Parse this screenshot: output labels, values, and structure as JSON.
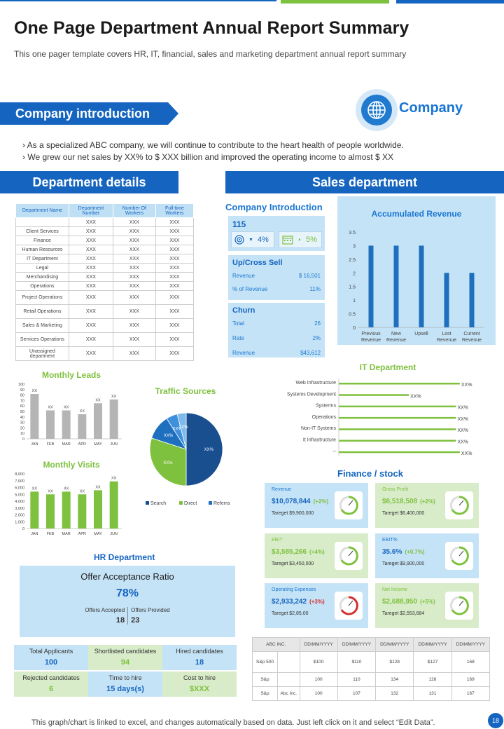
{
  "header": {
    "title": "One Page Department Annual Report Summary",
    "subtitle": "This one pager template covers HR, IT, financial, sales and marketing department annual report summary"
  },
  "company_intro": {
    "heading": "Company introduction",
    "logo_text": "Company",
    "bullets": [
      "As a specialized ABC company, we will continue to contribute to the heart health of people worldwide.",
      "We grew our net sales by XX%  to $ XXX  billion and improved  the operating income to almost $ XX"
    ]
  },
  "department_details": {
    "heading": "Department details",
    "columns": [
      "Department Name",
      "Department Number",
      "Number Of Workers",
      "Full-time Workers"
    ],
    "rows": [
      [
        "",
        "XXX",
        "XXX",
        "XXX"
      ],
      [
        "Client Services",
        "XXX",
        "XXX",
        "XXX"
      ],
      [
        "Finance",
        "XXX",
        "XXX",
        "XXX"
      ],
      [
        "Human Resources",
        "XXX",
        "XXX",
        "XXX"
      ],
      [
        "IT Department",
        "XXX",
        "XXX",
        "XXX"
      ],
      [
        "Legal",
        "XXX",
        "XXX",
        "XXX"
      ],
      [
        "Merchandising",
        "XXX",
        "XXX",
        "XXX"
      ],
      [
        "Operations",
        "XXX",
        "XXX",
        "XXX"
      ],
      [
        "Project Operations",
        "XXX",
        "XXX",
        "XXX"
      ],
      [
        "Retail Operations",
        "XXX",
        "XXX",
        "XXX"
      ],
      [
        "Sales & Marketing",
        "XXX",
        "XXX",
        "XXX"
      ],
      [
        "Services Operations",
        "XXX",
        "XXX",
        "XXX"
      ],
      [
        "Unassigned department",
        "XXX",
        "XXX",
        "XXX"
      ]
    ]
  },
  "sales_department": {
    "heading": "Sales department",
    "intro_title": "Company Introduction",
    "intro_number": "115",
    "chip1": "4%",
    "chip2": "5%",
    "upcross": {
      "title": "Up/Cross Sell",
      "revenue_label": "Revenue",
      "revenue_value": "$ 16,501",
      "pct_label": "% of Revenue",
      "pct_value": "11%"
    },
    "churn": {
      "title": "Churn",
      "total_label": "Total",
      "total_value": "26",
      "rate_label": "Rate",
      "rate_value": "2%",
      "revenue_label": "Revenue",
      "revenue_value": "$43,612"
    }
  },
  "colors": {
    "blue": "#1565c0",
    "green": "#7ec13e",
    "light_blue": "#c5e3f6",
    "light_green": "#d8ecc9",
    "red": "#d32f2f"
  },
  "chart_data": [
    {
      "type": "bar",
      "title": "Accumulated Revenue",
      "categories": [
        "Previous Revenue",
        "New Revenue",
        "Upsell",
        "Lost Revenue",
        "Current Revenue"
      ],
      "values": [
        3,
        3,
        3,
        2,
        2
      ],
      "ylim": [
        0,
        3.5
      ],
      "yticks": [
        "0",
        "0.5",
        "1",
        "1.5",
        "2",
        "2.5",
        "3",
        "3.5"
      ]
    },
    {
      "type": "bar",
      "title": "Monthly Leads",
      "categories": [
        "JAN",
        "FEB",
        "MAR",
        "APR",
        "MAY",
        "JUN"
      ],
      "values": [
        82,
        52,
        52,
        45,
        65,
        72
      ],
      "labels": [
        "XX",
        "XX",
        "XX",
        "XX",
        "XX",
        "XX"
      ],
      "ylim": [
        0,
        100
      ],
      "yticks": [
        "0",
        "10",
        "20",
        "30",
        "40",
        "50",
        "60",
        "70",
        "80",
        "90",
        "100"
      ]
    },
    {
      "type": "bar",
      "title": "Monthly Visits",
      "categories": [
        "JAN",
        "FEB",
        "MAR",
        "APR",
        "MAY",
        "JUN"
      ],
      "values": [
        5400,
        5000,
        5400,
        5000,
        5600,
        6900
      ],
      "labels": [
        "XX",
        "XX",
        "XX",
        "XX",
        "XX",
        "XX"
      ],
      "ylim": [
        0,
        8000
      ],
      "yticks": [
        "0",
        "1,000",
        "2,000",
        "3,000",
        "4,000",
        "5,000",
        "6,000",
        "7,000",
        "8,000"
      ]
    },
    {
      "type": "pie",
      "title": "Traffic Sources",
      "series": [
        {
          "name": "Search",
          "value": 50,
          "label": "XX%"
        },
        {
          "name": "Direct",
          "value": 30,
          "label": "XX%"
        },
        {
          "name": "Referral",
          "value": 11,
          "label": "XX%"
        },
        {
          "name": "Referral",
          "value": 5,
          "label": "XX%"
        },
        {
          "name": "Referral",
          "value": 4,
          "label": "XX%"
        }
      ],
      "legend": [
        "Search",
        "Direct",
        "Referra"
      ]
    },
    {
      "type": "bar",
      "title": "IT Department",
      "orientation": "horizontal",
      "categories": [
        "Web Infrastructure",
        "Systems Development",
        "Systerms",
        "Operations",
        "Non-IT Systems",
        "It Infrastructure",
        "--"
      ],
      "values": [
        95,
        55,
        92,
        92,
        92,
        92,
        95
      ],
      "labels": [
        "XX%",
        "XX%",
        "XX%",
        "XX%",
        "XX%",
        "XX%",
        "XX%"
      ]
    }
  ],
  "finance": {
    "heading": "Finance / stock",
    "cards": [
      {
        "label": "Revenue",
        "value": "$10,078,844",
        "change": "(+2%)",
        "target": "Tareget $9,900,000",
        "style": "b",
        "gauge": "green"
      },
      {
        "label": "Gross Profit",
        "value": "$6,518,508",
        "change": "(+2%)",
        "target": "Tareget $6,400,000",
        "style": "g",
        "gauge": "green"
      },
      {
        "label": "EBIT",
        "value": "$3,585,266",
        "change": "(+4%)",
        "target": "Tareget $3,450,000",
        "style": "g",
        "gauge": "green"
      },
      {
        "label": "EBIT%",
        "value": "35.6%",
        "change": "(+0.7%)",
        "target": "Tareget $9,900,000",
        "style": "b",
        "gauge": "green"
      },
      {
        "label": "Operating Expenses",
        "value": "$2,933,242",
        "change": "(+3%)",
        "target": "Tareget $2,85,00",
        "style": "b",
        "gauge": "red"
      },
      {
        "label": "Net Income",
        "value": "$2,688,950",
        "change": "(+5%)",
        "target": "Tareget $2,553,684",
        "style": "g",
        "gauge": "green"
      }
    ]
  },
  "stock_table": {
    "header": [
      "ABC INC.",
      "DD/MM/YYYY",
      "DD/MM/YYYY",
      "DD/MM/YYYY",
      "DD/MM/YYYY",
      "DD/MM/YYYY"
    ],
    "rows": [
      [
        "S&p 500",
        "",
        "$100",
        "$110",
        "$128",
        "$127",
        "168"
      ],
      [
        "S&p",
        "",
        "100",
        "110",
        "134",
        "128",
        "169"
      ],
      [
        "S&p",
        "Abc Inc.",
        "100",
        "107",
        "132",
        "131",
        "167"
      ]
    ]
  },
  "hr": {
    "heading": "HR Department",
    "offer_title": "Offer Acceptance Ratio",
    "offer_pct": "78%",
    "accepted_label": "Offers Accepted",
    "accepted_value": "18",
    "provided_label": "Offers Provided",
    "provided_value": "23",
    "cells": [
      {
        "label": "Total Applicants",
        "value": "100",
        "style": "b"
      },
      {
        "label": "Shortlisted candidates",
        "value": "94",
        "style": "g"
      },
      {
        "label": "Hired candidates",
        "value": "18",
        "style": "b"
      },
      {
        "label": "Rejected candidates",
        "value": "6",
        "style": "g"
      },
      {
        "label": "Time to hire",
        "value": "15 days(s)",
        "style": "b"
      },
      {
        "label": "Cost to hire",
        "value": "$XXX",
        "style": "g"
      }
    ]
  },
  "footer": {
    "note": "This graph/chart is linked to excel, and changes automatically based on data. Just left click on it and select “Edit Data”.",
    "page": "18"
  }
}
